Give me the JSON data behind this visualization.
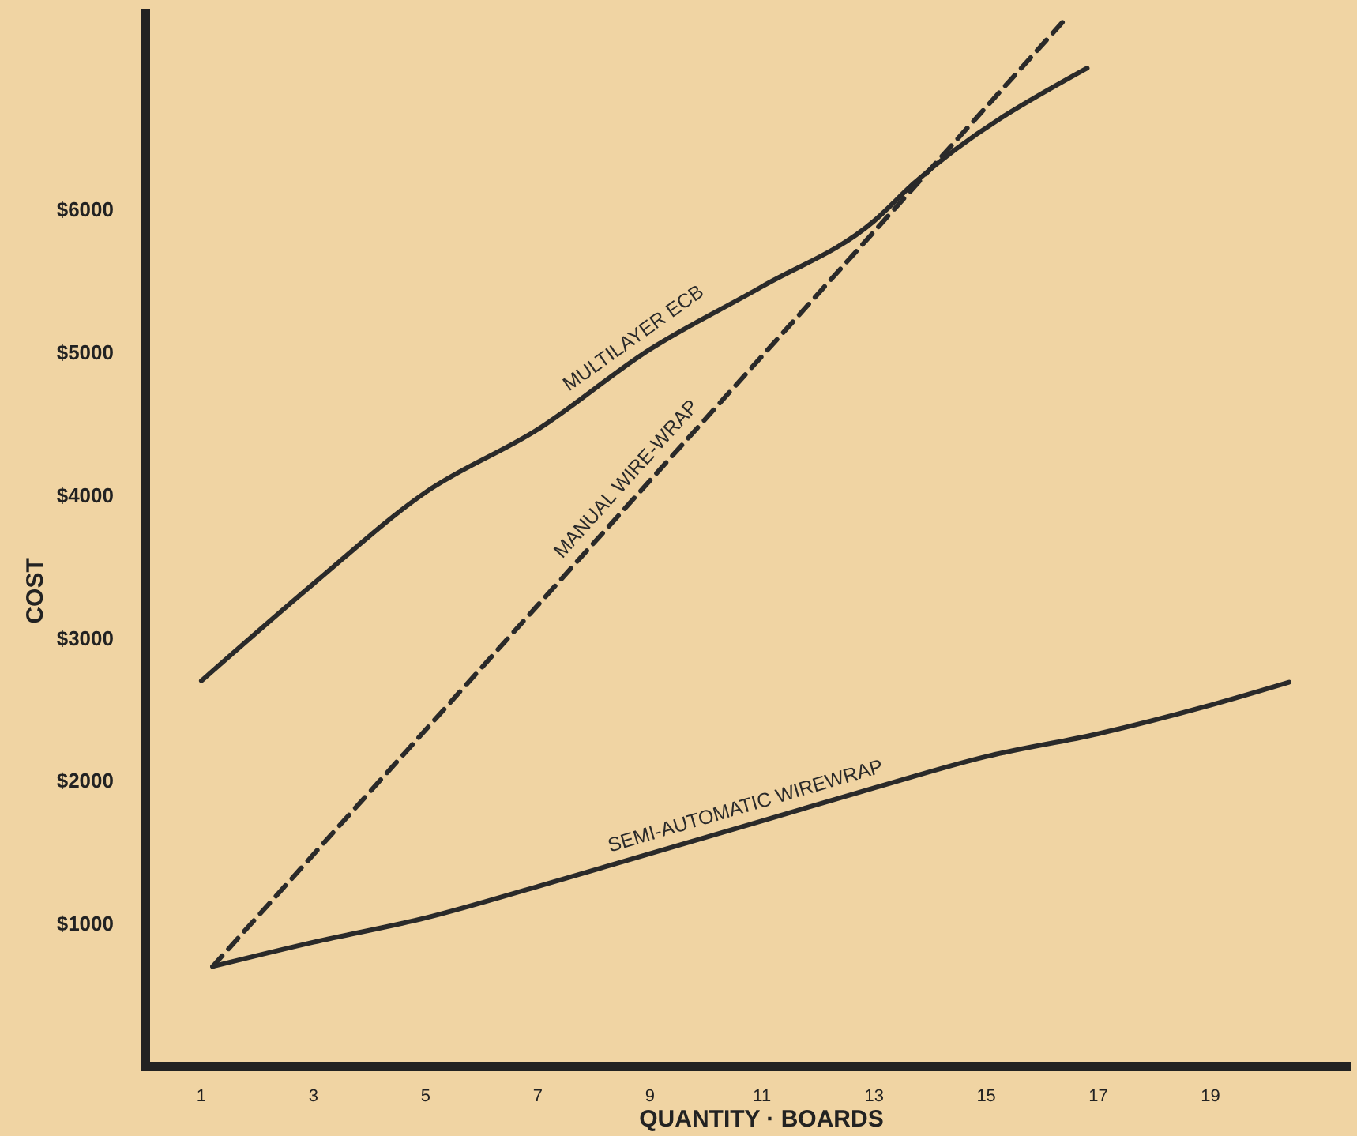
{
  "chart_data": {
    "type": "line",
    "xlabel": "QUANTITY · BOARDS",
    "ylabel": "COST",
    "xlim": [
      0,
      21.5
    ],
    "ylim": [
      0,
      7400
    ],
    "xticks": [
      1,
      3,
      5,
      7,
      9,
      11,
      13,
      15,
      17,
      19
    ],
    "yticks": [
      {
        "value": 1000,
        "label": "$1000"
      },
      {
        "value": 2000,
        "label": "$2000"
      },
      {
        "value": 3000,
        "label": "$3000"
      },
      {
        "value": 4000,
        "label": "$4000"
      },
      {
        "value": 5000,
        "label": "$5000"
      },
      {
        "value": 6000,
        "label": "$6000"
      }
    ],
    "grid": false,
    "marker": "none",
    "series": [
      {
        "name": "MULTILAYER ECB",
        "color": "#2a2a2a",
        "line_style": "solid",
        "x": [
          1,
          3,
          5,
          7,
          9,
          11,
          13,
          13.7,
          16.8
        ],
        "values": [
          2700,
          3380,
          4020,
          4460,
          5020,
          5460,
          5920,
          6180,
          6990
        ]
      },
      {
        "name": "MANUAL WIRE-WRAP",
        "color": "#2a2a2a",
        "line_style": "dashed",
        "x": [
          1.2,
          16.45
        ],
        "values": [
          700,
          7350
        ]
      },
      {
        "name": "SEMI-AUTOMATIC WIREWRAP",
        "color": "#2a2a2a",
        "line_style": "solid",
        "x": [
          1.2,
          3,
          5,
          7,
          9,
          11,
          13,
          15,
          17,
          19,
          20.4
        ],
        "values": [
          700,
          870,
          1040,
          1260,
          1490,
          1720,
          1950,
          2170,
          2330,
          2530,
          2690
        ]
      }
    ]
  }
}
